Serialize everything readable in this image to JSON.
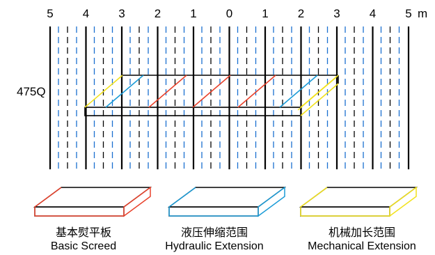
{
  "scale": {
    "ticks": [
      "5",
      "4",
      "3",
      "2",
      "1",
      "0",
      "1",
      "2",
      "3",
      "4",
      "5"
    ],
    "unit": "m"
  },
  "model_label": "475Q",
  "legend": [
    {
      "zh": "基本熨平板",
      "en": "Basic Screed",
      "color": "#e8412b"
    },
    {
      "zh": "液压伸缩范围",
      "en": "Hydraulic Extension",
      "color": "#1a9bd7"
    },
    {
      "zh": "机械加长范围",
      "en": "Mechanical Extension",
      "color": "#f2e21c"
    }
  ],
  "colors": {
    "solid_line": "#000000",
    "dash_line": "#1a6fd0",
    "basic": "#e8412b",
    "hydraulic": "#1a9bd7",
    "mechanical": "#f2e21c"
  }
}
